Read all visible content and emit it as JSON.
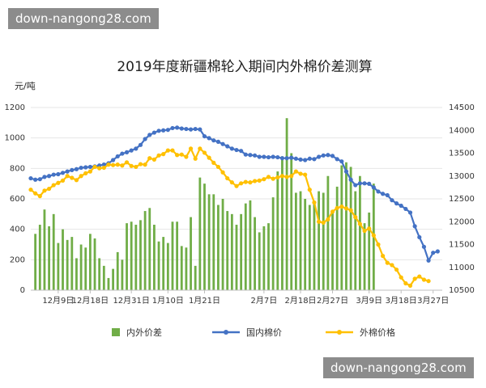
{
  "watermark_top": "down-nangong28.com",
  "watermark_bottom": "down-nangong28.com",
  "chart_data": {
    "type": "bar+line",
    "title": "2019年度新疆棉轮入期间内外棉价差测算",
    "y_left_unit": "元/吨",
    "y_left_range": [
      0,
      1200
    ],
    "y_left_ticks": [
      0,
      200,
      400,
      600,
      800,
      1000,
      1200
    ],
    "y_right_range": [
      10500,
      14500
    ],
    "y_right_ticks": [
      10500,
      11000,
      11500,
      12000,
      12500,
      13000,
      13500,
      14000,
      14500
    ],
    "x_tick_labels": [
      "12月9日",
      "12月18日",
      "12月31日",
      "1月10日",
      "1月21日",
      "2月7日",
      "2月18日",
      "2月27日",
      "3月9日",
      "3月18日",
      "3月27日"
    ],
    "x_tick_days": [
      6,
      13,
      22,
      30,
      38,
      51,
      59,
      66,
      74,
      81,
      88
    ],
    "x_range": [
      0,
      90
    ],
    "legend": [
      "内外价差",
      "国内棉价",
      "外棉价格"
    ],
    "legend_position": "bottom",
    "colors": {
      "spread": "#70ad47",
      "domestic": "#4472c4",
      "foreign": "#ffc000"
    },
    "series": [
      {
        "name": "内外价差",
        "kind": "bar",
        "axis": "left",
        "points": [
          [
            1,
            370
          ],
          [
            2,
            430
          ],
          [
            3,
            530
          ],
          [
            4,
            420
          ],
          [
            5,
            500
          ],
          [
            6,
            310
          ],
          [
            7,
            400
          ],
          [
            8,
            330
          ],
          [
            9,
            350
          ],
          [
            10,
            210
          ],
          [
            11,
            300
          ],
          [
            12,
            280
          ],
          [
            13,
            370
          ],
          [
            14,
            340
          ],
          [
            15,
            210
          ],
          [
            16,
            160
          ],
          [
            17,
            80
          ],
          [
            18,
            140
          ],
          [
            19,
            250
          ],
          [
            20,
            200
          ],
          [
            21,
            440
          ],
          [
            22,
            450
          ],
          [
            23,
            430
          ],
          [
            24,
            460
          ],
          [
            25,
            520
          ],
          [
            26,
            540
          ],
          [
            27,
            430
          ],
          [
            28,
            320
          ],
          [
            29,
            350
          ],
          [
            30,
            310
          ],
          [
            31,
            450
          ],
          [
            32,
            450
          ],
          [
            33,
            290
          ],
          [
            34,
            280
          ],
          [
            35,
            480
          ],
          [
            36,
            160
          ],
          [
            37,
            740
          ],
          [
            38,
            700
          ],
          [
            39,
            630
          ],
          [
            40,
            630
          ],
          [
            41,
            560
          ],
          [
            42,
            600
          ],
          [
            43,
            520
          ],
          [
            44,
            500
          ],
          [
            45,
            430
          ],
          [
            46,
            500
          ],
          [
            47,
            570
          ],
          [
            48,
            590
          ],
          [
            49,
            480
          ],
          [
            50,
            380
          ],
          [
            51,
            420
          ],
          [
            52,
            440
          ],
          [
            53,
            610
          ],
          [
            54,
            780
          ],
          [
            55,
            880
          ],
          [
            56,
            1130
          ],
          [
            57,
            900
          ],
          [
            58,
            640
          ],
          [
            59,
            650
          ],
          [
            60,
            600
          ],
          [
            61,
            560
          ],
          [
            62,
            570
          ],
          [
            63,
            650
          ],
          [
            64,
            640
          ],
          [
            65,
            750
          ],
          [
            66,
            510
          ],
          [
            67,
            680
          ],
          [
            68,
            820
          ],
          [
            69,
            840
          ],
          [
            70,
            810
          ],
          [
            71,
            650
          ],
          [
            72,
            750
          ],
          [
            73,
            440
          ],
          [
            74,
            510
          ],
          [
            75,
            700
          ]
        ]
      },
      {
        "name": "国内棉价",
        "kind": "line",
        "axis": "right",
        "points": [
          [
            0,
            12950
          ],
          [
            1,
            12920
          ],
          [
            2,
            12930
          ],
          [
            3,
            12980
          ],
          [
            4,
            13000
          ],
          [
            5,
            13030
          ],
          [
            6,
            13040
          ],
          [
            7,
            13070
          ],
          [
            8,
            13100
          ],
          [
            9,
            13130
          ],
          [
            10,
            13150
          ],
          [
            11,
            13180
          ],
          [
            12,
            13190
          ],
          [
            13,
            13200
          ],
          [
            14,
            13210
          ],
          [
            15,
            13230
          ],
          [
            16,
            13250
          ],
          [
            17,
            13280
          ],
          [
            18,
            13350
          ],
          [
            19,
            13430
          ],
          [
            20,
            13490
          ],
          [
            21,
            13520
          ],
          [
            22,
            13560
          ],
          [
            23,
            13600
          ],
          [
            24,
            13680
          ],
          [
            25,
            13810
          ],
          [
            26,
            13900
          ],
          [
            27,
            13950
          ],
          [
            28,
            13990
          ],
          [
            29,
            14000
          ],
          [
            30,
            14010
          ],
          [
            31,
            14050
          ],
          [
            32,
            14060
          ],
          [
            33,
            14040
          ],
          [
            34,
            14030
          ],
          [
            35,
            14020
          ],
          [
            36,
            14030
          ],
          [
            37,
            14020
          ],
          [
            38,
            13870
          ],
          [
            39,
            13830
          ],
          [
            40,
            13780
          ],
          [
            41,
            13750
          ],
          [
            42,
            13700
          ],
          [
            43,
            13650
          ],
          [
            44,
            13600
          ],
          [
            45,
            13570
          ],
          [
            46,
            13550
          ],
          [
            47,
            13470
          ],
          [
            48,
            13460
          ],
          [
            49,
            13450
          ],
          [
            50,
            13420
          ],
          [
            51,
            13420
          ],
          [
            52,
            13410
          ],
          [
            53,
            13420
          ],
          [
            54,
            13410
          ],
          [
            55,
            13390
          ],
          [
            56,
            13390
          ],
          [
            57,
            13400
          ],
          [
            58,
            13380
          ],
          [
            59,
            13360
          ],
          [
            60,
            13350
          ],
          [
            61,
            13380
          ],
          [
            62,
            13370
          ],
          [
            63,
            13420
          ],
          [
            64,
            13450
          ],
          [
            65,
            13460
          ],
          [
            66,
            13440
          ],
          [
            67,
            13370
          ],
          [
            68,
            13320
          ],
          [
            69,
            13100
          ],
          [
            70,
            12920
          ],
          [
            71,
            12800
          ],
          [
            72,
            12840
          ],
          [
            73,
            12840
          ],
          [
            74,
            12830
          ],
          [
            75,
            12750
          ],
          [
            76,
            12660
          ],
          [
            77,
            12610
          ],
          [
            78,
            12580
          ],
          [
            79,
            12470
          ],
          [
            80,
            12400
          ],
          [
            81,
            12350
          ],
          [
            82,
            12280
          ],
          [
            83,
            12200
          ],
          [
            84,
            11900
          ],
          [
            85,
            11660
          ],
          [
            86,
            11450
          ],
          [
            87,
            11150
          ],
          [
            88,
            11320
          ],
          [
            89,
            11350
          ]
        ]
      },
      {
        "name": "外棉价格",
        "kind": "line",
        "axis": "right",
        "points": [
          [
            0,
            12700
          ],
          [
            1,
            12620
          ],
          [
            2,
            12560
          ],
          [
            3,
            12680
          ],
          [
            4,
            12720
          ],
          [
            5,
            12800
          ],
          [
            6,
            12850
          ],
          [
            7,
            12900
          ],
          [
            8,
            13000
          ],
          [
            9,
            12960
          ],
          [
            10,
            12910
          ],
          [
            11,
            13000
          ],
          [
            12,
            13060
          ],
          [
            13,
            13100
          ],
          [
            14,
            13200
          ],
          [
            15,
            13170
          ],
          [
            16,
            13180
          ],
          [
            17,
            13250
          ],
          [
            18,
            13240
          ],
          [
            19,
            13250
          ],
          [
            20,
            13230
          ],
          [
            21,
            13300
          ],
          [
            22,
            13220
          ],
          [
            23,
            13200
          ],
          [
            24,
            13260
          ],
          [
            25,
            13250
          ],
          [
            26,
            13390
          ],
          [
            27,
            13360
          ],
          [
            28,
            13450
          ],
          [
            29,
            13480
          ],
          [
            30,
            13560
          ],
          [
            31,
            13560
          ],
          [
            32,
            13460
          ],
          [
            33,
            13470
          ],
          [
            34,
            13420
          ],
          [
            35,
            13600
          ],
          [
            36,
            13380
          ],
          [
            37,
            13600
          ],
          [
            38,
            13510
          ],
          [
            39,
            13400
          ],
          [
            40,
            13290
          ],
          [
            41,
            13200
          ],
          [
            42,
            13080
          ],
          [
            43,
            12950
          ],
          [
            44,
            12860
          ],
          [
            45,
            12780
          ],
          [
            46,
            12840
          ],
          [
            47,
            12870
          ],
          [
            48,
            12860
          ],
          [
            49,
            12890
          ],
          [
            50,
            12900
          ],
          [
            51,
            12930
          ],
          [
            52,
            12980
          ],
          [
            53,
            12940
          ],
          [
            54,
            12970
          ],
          [
            55,
            13000
          ],
          [
            56,
            12980
          ],
          [
            57,
            13000
          ],
          [
            58,
            13100
          ],
          [
            59,
            13050
          ],
          [
            60,
            13030
          ],
          [
            61,
            12700
          ],
          [
            62,
            12420
          ],
          [
            63,
            12000
          ],
          [
            64,
            11980
          ],
          [
            65,
            12050
          ],
          [
            66,
            12220
          ],
          [
            67,
            12300
          ],
          [
            68,
            12330
          ],
          [
            69,
            12290
          ],
          [
            70,
            12250
          ],
          [
            71,
            12100
          ],
          [
            72,
            11950
          ],
          [
            73,
            11800
          ],
          [
            74,
            11850
          ],
          [
            75,
            11700
          ],
          [
            76,
            11500
          ],
          [
            77,
            11250
          ],
          [
            78,
            11100
          ],
          [
            79,
            11050
          ],
          [
            80,
            10950
          ],
          [
            81,
            10780
          ],
          [
            82,
            10650
          ],
          [
            83,
            10600
          ],
          [
            84,
            10750
          ],
          [
            85,
            10800
          ],
          [
            86,
            10730
          ],
          [
            87,
            10700
          ]
        ]
      }
    ]
  }
}
